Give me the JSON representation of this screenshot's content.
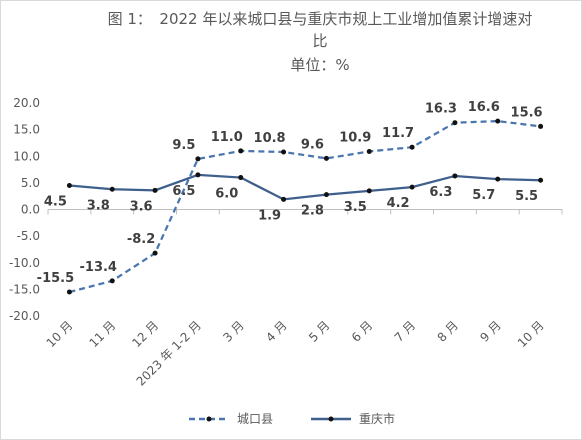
{
  "title": {
    "line1": "图 1：　2022 年以来城口县与重庆市规上工业增加值累计增速对",
    "line2": "比",
    "unit": "单位：%"
  },
  "chart_data": {
    "type": "line",
    "categories": [
      "10 月",
      "11 月",
      "12 月",
      "2023 年 1-2 月",
      "3 月",
      "4 月",
      "5 月",
      "6 月",
      "7 月",
      "8 月",
      "9 月",
      "10 月"
    ],
    "y_ticks": [
      "20.0",
      "15.0",
      "10.0",
      "5.0",
      "0.0",
      "-5.0",
      "-10.0",
      "-15.0",
      "-20.0"
    ],
    "ylim": [
      -20,
      20
    ],
    "y_step": 5,
    "grid": false,
    "legend_position": "bottom",
    "series": [
      {
        "name": "城口县",
        "values": [
          -15.5,
          -13.4,
          -8.2,
          9.5,
          11.0,
          10.8,
          9.6,
          10.9,
          11.7,
          16.3,
          16.6,
          15.6
        ],
        "labels": [
          "-15.5",
          "-13.4",
          "-8.2",
          "9.5",
          "11.0",
          "10.8",
          "9.6",
          "10.9",
          "11.7",
          "16.3",
          "16.6",
          "15.6"
        ],
        "color": "#4a76b0",
        "style": "dashed",
        "label_placement": "above"
      },
      {
        "name": "重庆市",
        "values": [
          4.5,
          3.8,
          3.6,
          6.5,
          6.0,
          1.9,
          2.8,
          3.5,
          4.2,
          6.3,
          5.7,
          5.5
        ],
        "labels": [
          "4.5",
          "3.8",
          "3.6",
          "6.5",
          "6.0",
          "1.9",
          "2.8",
          "3.5",
          "4.2",
          "6.3",
          "5.7",
          "5.5"
        ],
        "color": "#3f5f8c",
        "style": "solid",
        "label_placement": "below"
      }
    ]
  },
  "legend": {
    "series1_label": "城口县",
    "series2_label": "重庆市"
  }
}
